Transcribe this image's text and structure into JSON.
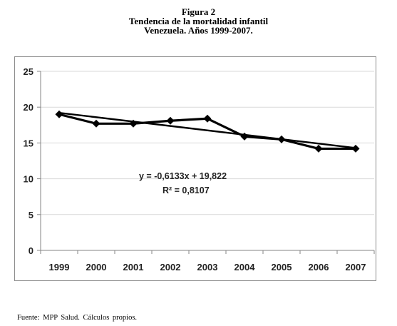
{
  "figure": {
    "title_line1": "Figura 2",
    "title_line2": "Tendencia de la mortalidad infantil",
    "title_line3": "Venezuela. Años 1999-2007."
  },
  "chart_data": {
    "type": "line",
    "categories": [
      "1999",
      "2000",
      "2001",
      "2002",
      "2003",
      "2004",
      "2005",
      "2006",
      "2007"
    ],
    "series": [
      {
        "values": [
          19.0,
          17.7,
          17.7,
          18.1,
          18.4,
          15.9,
          15.5,
          14.2,
          14.2
        ]
      }
    ],
    "trendline": {
      "type": "linear",
      "equation": "y = -0,6133x + 19,822",
      "r_squared": "R² = 0,8107",
      "slope": -0.6133,
      "intercept": 19.822
    },
    "title": "",
    "xlabel": "",
    "ylabel": "",
    "ylim": [
      0,
      25
    ],
    "yticks": [
      "0",
      "5",
      "10",
      "15",
      "20",
      "25"
    ],
    "grid": true,
    "legend": "none",
    "colors": {
      "series": "#000000",
      "grid": "#d9d9d9",
      "axis": "#868686"
    }
  },
  "footer": {
    "source": "Fuente: MPP Salud.  Cálculos propios."
  }
}
